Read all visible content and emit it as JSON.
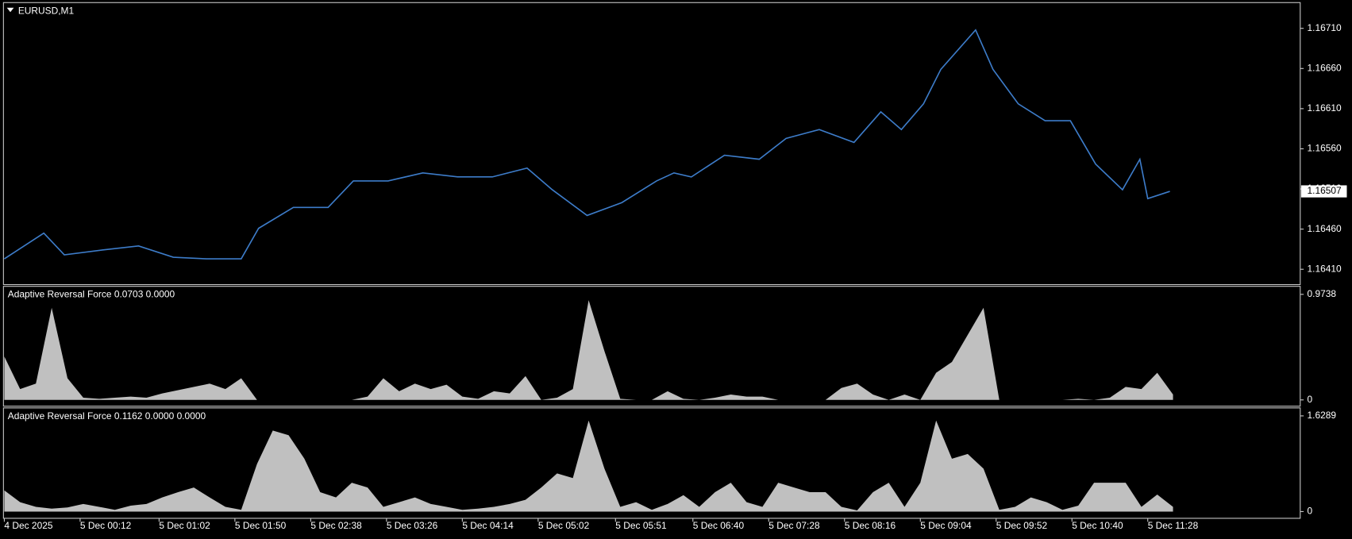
{
  "chart_data": [
    {
      "type": "line",
      "title": "EURUSD,M1",
      "color": "#3d7cc9",
      "x": [
        0,
        25,
        38,
        62,
        85,
        107,
        128,
        150,
        161,
        183,
        205,
        221,
        243,
        265,
        287,
        309,
        331,
        347,
        369,
        391,
        413,
        424,
        435,
        456,
        478,
        495,
        516,
        538,
        555,
        568,
        582,
        593,
        615,
        626,
        642,
        659,
        675,
        691,
        708,
        719,
        724,
        738
      ],
      "values": [
        1.16423,
        1.16455,
        1.16428,
        1.16434,
        1.16439,
        1.16425,
        1.16423,
        1.16423,
        1.16461,
        1.16487,
        1.16487,
        1.1652,
        1.1652,
        1.1653,
        1.16525,
        1.16525,
        1.16536,
        1.16509,
        1.16477,
        1.16493,
        1.1652,
        1.1653,
        1.16525,
        1.16552,
        1.16547,
        1.16573,
        1.16584,
        1.16568,
        1.16606,
        1.16584,
        1.16616,
        1.16659,
        1.16708,
        1.16659,
        1.16616,
        1.16595,
        1.16595,
        1.16541,
        1.16509,
        1.16547,
        1.16498,
        1.16507
      ],
      "xlim": [
        0,
        820
      ],
      "ylim": [
        1.16392,
        1.16741
      ],
      "yticks": [
        {
          "value": 1.1641,
          "label": "1.16410"
        },
        {
          "value": 1.1646,
          "label": "1.16460"
        },
        {
          "value": 1.1651,
          "label": "1.16510"
        },
        {
          "value": 1.1656,
          "label": "1.16560"
        },
        {
          "value": 1.1661,
          "label": "1.16610"
        },
        {
          "value": 1.1666,
          "label": "1.16660"
        },
        {
          "value": 1.1671,
          "label": "1.16710"
        }
      ],
      "last_price": {
        "value": 1.16507,
        "label": "1.16507"
      }
    },
    {
      "type": "area",
      "title": "Adaptive Reversal Force 0.0703 0.0000",
      "color": "#c0c0c0",
      "x": [
        0,
        10,
        20,
        30,
        40,
        50,
        60,
        70,
        80,
        90,
        100,
        110,
        120,
        130,
        140,
        150,
        160,
        170,
        180,
        190,
        200,
        210,
        220,
        230,
        240,
        250,
        260,
        270,
        280,
        290,
        300,
        310,
        320,
        330,
        340,
        350,
        360,
        370,
        380,
        390,
        400,
        410,
        420,
        430,
        440,
        450,
        460,
        470,
        480,
        490,
        500,
        510,
        520,
        530,
        540,
        550,
        560,
        570,
        580,
        590,
        600,
        610,
        620,
        630,
        640,
        650,
        660,
        670,
        680,
        690,
        700,
        710,
        720,
        730,
        740
      ],
      "values": [
        0.4,
        0.1,
        0.15,
        0.85,
        0.2,
        0.02,
        0.01,
        0.02,
        0.03,
        0.02,
        0.06,
        0.09,
        0.12,
        0.15,
        0.1,
        0.2,
        0,
        0,
        0,
        0,
        0,
        0,
        0,
        0.03,
        0.2,
        0.08,
        0.15,
        0.1,
        0.14,
        0.03,
        0.01,
        0.08,
        0.06,
        0.22,
        0,
        0.02,
        0.1,
        0.92,
        0.45,
        0.01,
        0,
        0,
        0.08,
        0.01,
        0,
        0.02,
        0.05,
        0.03,
        0.03,
        0,
        0,
        0,
        0,
        0.11,
        0.15,
        0.05,
        0,
        0.05,
        0,
        0.25,
        0.35,
        0.6,
        0.85,
        0,
        0,
        0,
        0,
        0,
        0.01,
        0,
        0.02,
        0.12,
        0.1,
        0.25,
        0.05
      ],
      "xlim": [
        0,
        820
      ],
      "ylim": [
        -0.05,
        1.04
      ],
      "yticks": [
        0,
        0.9738
      ]
    },
    {
      "type": "area",
      "title": "Adaptive Reversal Force 0.1162 0.0000 0.0000",
      "color": "#c0c0c0",
      "x": [
        0,
        10,
        20,
        30,
        40,
        50,
        60,
        70,
        80,
        90,
        100,
        110,
        120,
        130,
        140,
        150,
        160,
        170,
        180,
        190,
        200,
        210,
        220,
        230,
        240,
        250,
        260,
        270,
        280,
        290,
        300,
        310,
        320,
        330,
        340,
        350,
        360,
        370,
        380,
        390,
        400,
        410,
        420,
        430,
        440,
        450,
        460,
        470,
        480,
        490,
        500,
        510,
        520,
        530,
        540,
        550,
        560,
        570,
        580,
        590,
        600,
        610,
        620,
        630,
        640,
        650,
        660,
        670,
        680,
        690,
        700,
        710,
        720,
        730,
        740
      ],
      "values": [
        0.36,
        0.16,
        0.08,
        0.05,
        0.07,
        0.13,
        0.08,
        0.03,
        0.1,
        0.13,
        0.24,
        0.33,
        0.41,
        0.24,
        0.08,
        0.03,
        0.81,
        1.38,
        1.3,
        0.9,
        0.33,
        0.24,
        0.49,
        0.41,
        0.08,
        0.16,
        0.24,
        0.13,
        0.08,
        0.03,
        0.05,
        0.08,
        0.13,
        0.2,
        0.41,
        0.65,
        0.57,
        1.55,
        0.73,
        0.08,
        0.16,
        0.03,
        0.13,
        0.28,
        0.08,
        0.33,
        0.49,
        0.16,
        0.08,
        0.49,
        0.41,
        0.33,
        0.33,
        0.08,
        0.02,
        0.33,
        0.49,
        0.08,
        0.49,
        1.55,
        0.9,
        0.98,
        0.73,
        0.03,
        0.08,
        0.24,
        0.16,
        0.03,
        0.1,
        0.49,
        0.49,
        0.49,
        0.08,
        0.29,
        0.08
      ],
      "xlim": [
        0,
        820
      ],
      "ylim": [
        -0.1,
        1.75
      ],
      "yticks": [
        0,
        1.6289
      ],
      "xticks": [
        {
          "value": 0,
          "label": "4 Dec 2025"
        },
        {
          "value": 48,
          "label": "5 Dec 00:12"
        },
        {
          "value": 98,
          "label": "5 Dec 01:02"
        },
        {
          "value": 146,
          "label": "5 Dec 01:50"
        },
        {
          "value": 194,
          "label": "5 Dec 02:38"
        },
        {
          "value": 242,
          "label": "5 Dec 03:26"
        },
        {
          "value": 290,
          "label": "5 Dec 04:14"
        },
        {
          "value": 338,
          "label": "5 Dec 05:02"
        },
        {
          "value": 387,
          "label": "5 Dec 05:51"
        },
        {
          "value": 436,
          "label": "5 Dec 06:40"
        },
        {
          "value": 484,
          "label": "5 Dec 07:28"
        },
        {
          "value": 532,
          "label": "5 Dec 08:16"
        },
        {
          "value": 580,
          "label": "5 Dec 09:04"
        },
        {
          "value": 628,
          "label": "5 Dec 09:52"
        },
        {
          "value": 676,
          "label": "5 Dec 10:40"
        },
        {
          "value": 724,
          "label": "5 Dec 11:28"
        }
      ]
    }
  ]
}
